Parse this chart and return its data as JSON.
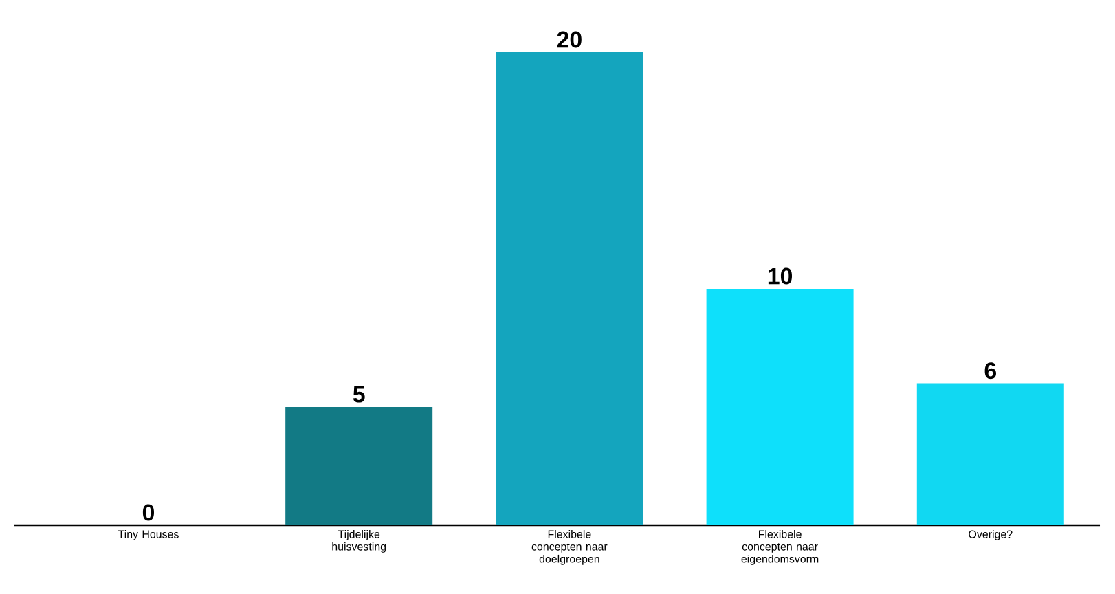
{
  "chart_data": {
    "type": "bar",
    "categories": [
      "Tiny Houses",
      "Tijdelijke huisvesting",
      "Flexibele concepten naar doelgroepen",
      "Flexibele concepten naar eigendomsvorm",
      "Overige?"
    ],
    "values": [
      0,
      5,
      20,
      10,
      6
    ],
    "colors": [
      "#127a85",
      "#127a85",
      "#14a5be",
      "#0ee0fb",
      "#11d8f2"
    ],
    "data_labels": true
  }
}
